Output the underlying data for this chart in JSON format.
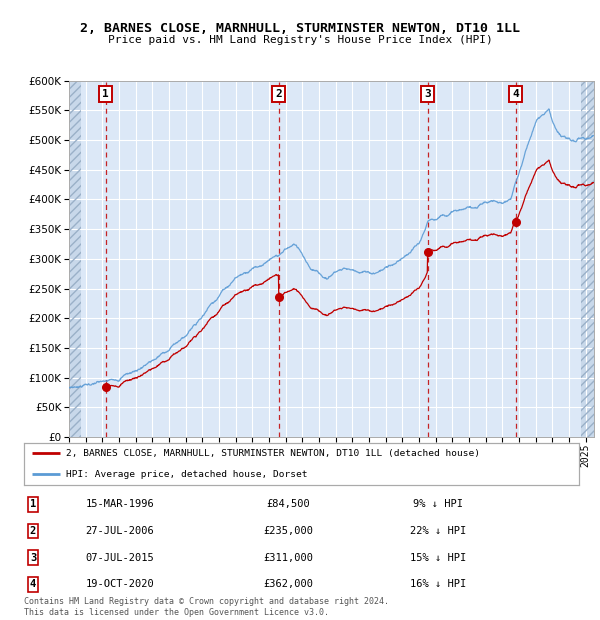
{
  "title": "2, BARNES CLOSE, MARNHULL, STURMINSTER NEWTON, DT10 1LL",
  "subtitle": "Price paid vs. HM Land Registry's House Price Index (HPI)",
  "ylim": [
    0,
    600000
  ],
  "yticks": [
    0,
    50000,
    100000,
    150000,
    200000,
    250000,
    300000,
    350000,
    400000,
    450000,
    500000,
    550000,
    600000
  ],
  "xlim_start": 1994.0,
  "xlim_end": 2025.5,
  "background_chart": "#dce8f7",
  "grid_color": "#ffffff",
  "transactions": [
    {
      "num": 1,
      "date_year": 1996.21,
      "price": 84500
    },
    {
      "num": 2,
      "date_year": 2006.57,
      "price": 235000
    },
    {
      "num": 3,
      "date_year": 2015.51,
      "price": 311000
    },
    {
      "num": 4,
      "date_year": 2020.8,
      "price": 362000
    }
  ],
  "hpi_color": "#5b9bd5",
  "sold_color": "#c00000",
  "legend_label_sold": "2, BARNES CLOSE, MARNHULL, STURMINSTER NEWTON, DT10 1LL (detached house)",
  "legend_label_hpi": "HPI: Average price, detached house, Dorset",
  "footnote": "Contains HM Land Registry data © Crown copyright and database right 2024.\nThis data is licensed under the Open Government Licence v3.0.",
  "table_rows": [
    [
      "1",
      "15-MAR-1996",
      "£84,500",
      "9% ↓ HPI"
    ],
    [
      "2",
      "27-JUL-2006",
      "£235,000",
      "22% ↓ HPI"
    ],
    [
      "3",
      "07-JUL-2015",
      "£311,000",
      "15% ↓ HPI"
    ],
    [
      "4",
      "19-OCT-2020",
      "£362,000",
      "16% ↓ HPI"
    ]
  ]
}
